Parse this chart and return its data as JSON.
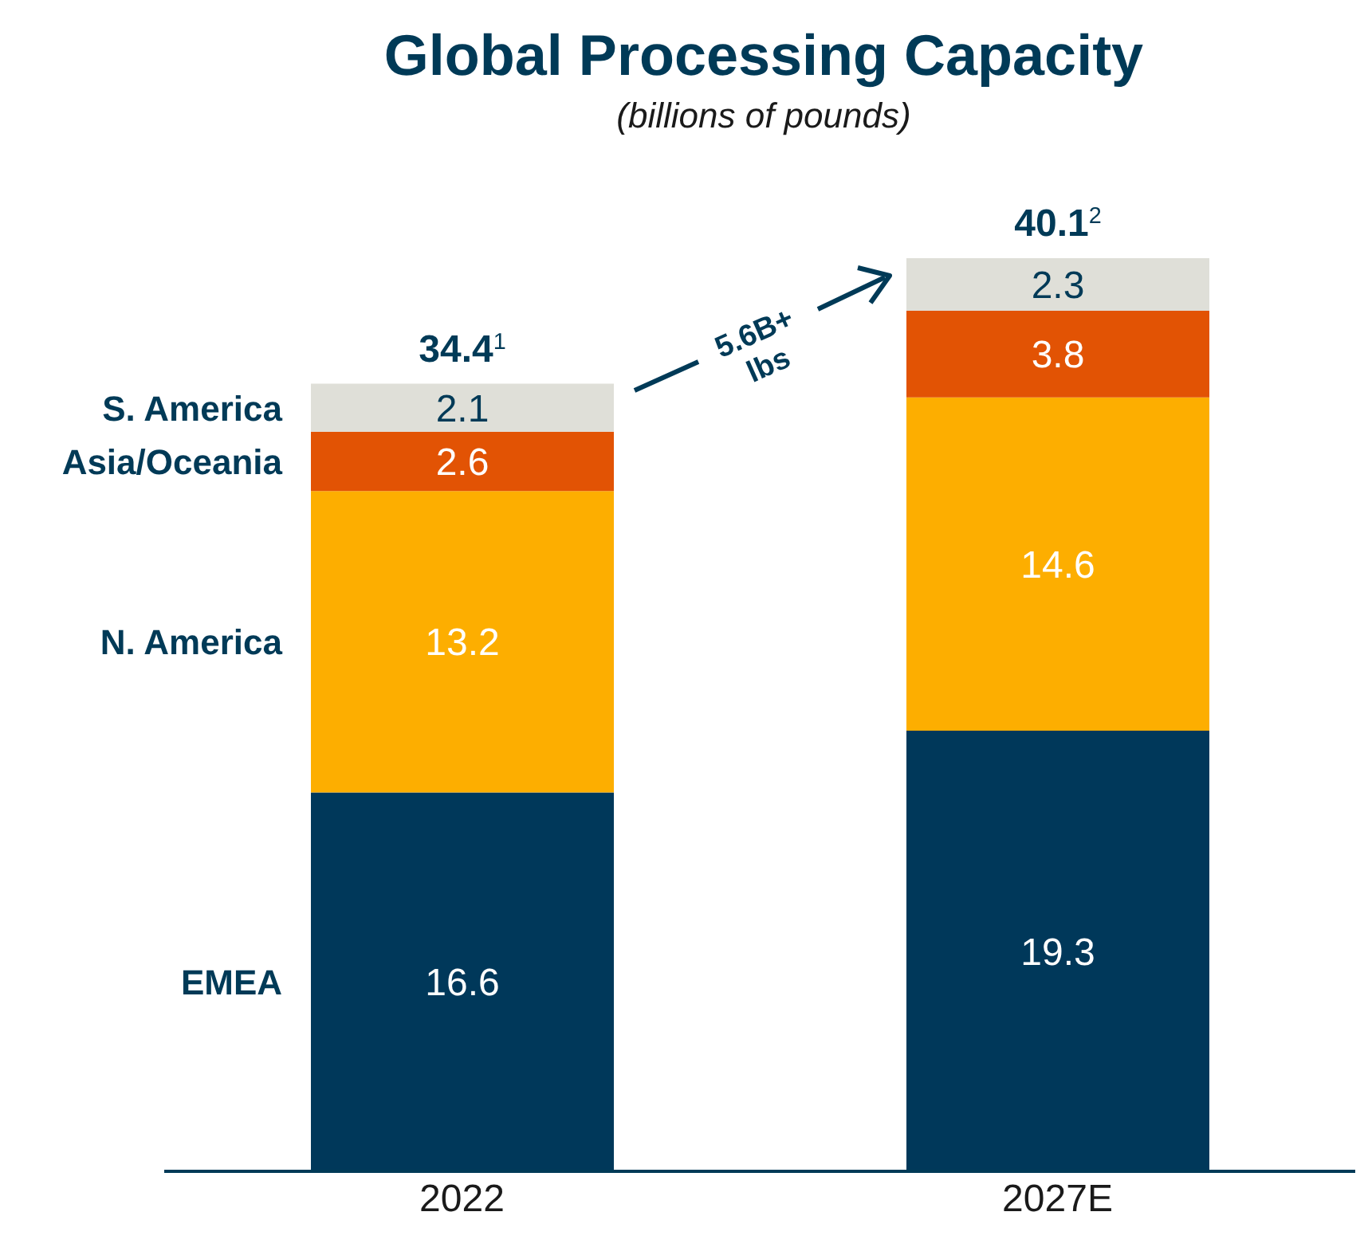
{
  "chart_data": {
    "type": "bar",
    "title": "Global Processing Capacity",
    "subtitle": "(billions of pounds)",
    "categories": [
      "2022",
      "2027E"
    ],
    "stacked": true,
    "data_labels": true,
    "series": [
      {
        "name": "EMEA",
        "color": "#00385a",
        "values": [
          16.6,
          19.3
        ]
      },
      {
        "name": "N. America",
        "color": "#fdae00",
        "values": [
          13.2,
          14.6
        ]
      },
      {
        "name": "Asia/Oceania",
        "color": "#e25304",
        "values": [
          2.6,
          3.8
        ]
      },
      {
        "name": "S. America",
        "color": "#dfdfd8",
        "values": [
          2.1,
          2.3
        ]
      }
    ],
    "totals": [
      "34.4$^{1}$",
      "40.1$^{2}$"
    ],
    "annotations": [
      "5.6B+ lbs"
    ]
  }
}
